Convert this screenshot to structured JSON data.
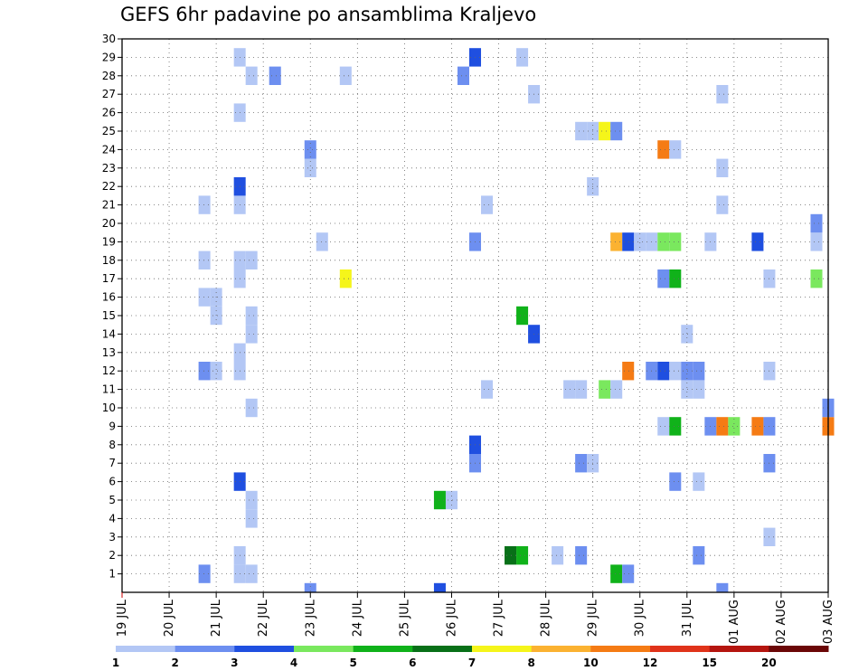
{
  "chart_data": {
    "type": "heatmap",
    "title": "GEFS 6hr padavine po ansamblima Kraljevo",
    "xlabel": "",
    "ylabel": "",
    "x_unit": "6-hour step",
    "x_range": [
      0,
      60
    ],
    "x_ticks": [
      "19 JUL",
      "20 JUL",
      "21 JUL",
      "22 JUL",
      "23 JUL",
      "24 JUL",
      "25 JUL",
      "26 JUL",
      "27 JUL",
      "28 JUL",
      "29 JUL",
      "30 JUL",
      "31 JUL",
      "01 AUG",
      "02 AUG",
      "03 AUG"
    ],
    "y_ticks": [
      1,
      2,
      3,
      4,
      5,
      6,
      7,
      8,
      9,
      10,
      11,
      12,
      13,
      14,
      15,
      16,
      17,
      18,
      19,
      20,
      21,
      22,
      23,
      24,
      25,
      26,
      27,
      28,
      29,
      30
    ],
    "y_range": [
      0,
      30
    ],
    "grid": true,
    "colorbar": {
      "labels": [
        "1",
        "2",
        "3",
        "4",
        "5",
        "6",
        "7",
        "8",
        "10",
        "12",
        "15",
        "20"
      ],
      "colors": [
        "#b3c7f5",
        "#6d8ff0",
        "#1f4fe0",
        "#7ae85e",
        "#10b21a",
        "#087018",
        "#f5f51a",
        "#fbb231",
        "#f57b14",
        "#e0331a",
        "#b5150f",
        "#6b0707"
      ]
    },
    "cells": [
      {
        "x": 7,
        "y": 1,
        "c": 2
      },
      {
        "x": 7,
        "y": 12,
        "c": 2
      },
      {
        "x": 7,
        "y": 16,
        "c": 1
      },
      {
        "x": 7,
        "y": 18,
        "c": 1
      },
      {
        "x": 7,
        "y": 21,
        "c": 1
      },
      {
        "x": 8,
        "y": 12,
        "c": 1
      },
      {
        "x": 8,
        "y": 15,
        "c": 1
      },
      {
        "x": 8,
        "y": 16,
        "c": 1
      },
      {
        "x": 10,
        "y": 1,
        "c": 1
      },
      {
        "x": 10,
        "y": 2,
        "c": 1
      },
      {
        "x": 10,
        "y": 6,
        "c": 3
      },
      {
        "x": 10,
        "y": 12,
        "c": 1
      },
      {
        "x": 10,
        "y": 13,
        "c": 1
      },
      {
        "x": 10,
        "y": 17,
        "c": 1
      },
      {
        "x": 10,
        "y": 18,
        "c": 1
      },
      {
        "x": 10,
        "y": 21,
        "c": 1
      },
      {
        "x": 10,
        "y": 22,
        "c": 3
      },
      {
        "x": 10,
        "y": 26,
        "c": 1
      },
      {
        "x": 10,
        "y": 29,
        "c": 1
      },
      {
        "x": 11,
        "y": 1,
        "c": 1
      },
      {
        "x": 11,
        "y": 4,
        "c": 1
      },
      {
        "x": 11,
        "y": 5,
        "c": 1
      },
      {
        "x": 11,
        "y": 10,
        "c": 1
      },
      {
        "x": 11,
        "y": 14,
        "c": 1
      },
      {
        "x": 11,
        "y": 15,
        "c": 1
      },
      {
        "x": 11,
        "y": 18,
        "c": 1
      },
      {
        "x": 11,
        "y": 28,
        "c": 1
      },
      {
        "x": 13,
        "y": 28,
        "c": 2
      },
      {
        "x": 16,
        "y": 0,
        "c": 2
      },
      {
        "x": 16,
        "y": 23,
        "c": 1
      },
      {
        "x": 16,
        "y": 24,
        "c": 2
      },
      {
        "x": 17,
        "y": 19,
        "c": 1
      },
      {
        "x": 19,
        "y": 17,
        "c": 7
      },
      {
        "x": 19,
        "y": 28,
        "c": 1
      },
      {
        "x": 27,
        "y": 0,
        "c": 3
      },
      {
        "x": 27,
        "y": 5,
        "c": 5
      },
      {
        "x": 28,
        "y": 5,
        "c": 1
      },
      {
        "x": 29,
        "y": 28,
        "c": 2
      },
      {
        "x": 30,
        "y": 7,
        "c": 2
      },
      {
        "x": 30,
        "y": 8,
        "c": 3
      },
      {
        "x": 30,
        "y": 19,
        "c": 2
      },
      {
        "x": 30,
        "y": 29,
        "c": 3
      },
      {
        "x": 31,
        "y": 11,
        "c": 1
      },
      {
        "x": 31,
        "y": 21,
        "c": 1
      },
      {
        "x": 33,
        "y": 2,
        "c": 6
      },
      {
        "x": 34,
        "y": 2,
        "c": 5
      },
      {
        "x": 34,
        "y": 15,
        "c": 5
      },
      {
        "x": 34,
        "y": 29,
        "c": 1
      },
      {
        "x": 35,
        "y": 14,
        "c": 3
      },
      {
        "x": 35,
        "y": 27,
        "c": 1
      },
      {
        "x": 37,
        "y": 2,
        "c": 1
      },
      {
        "x": 38,
        "y": 11,
        "c": 1
      },
      {
        "x": 39,
        "y": 2,
        "c": 2
      },
      {
        "x": 39,
        "y": 7,
        "c": 2
      },
      {
        "x": 39,
        "y": 11,
        "c": 1
      },
      {
        "x": 39,
        "y": 25,
        "c": 1
      },
      {
        "x": 40,
        "y": 7,
        "c": 1
      },
      {
        "x": 40,
        "y": 22,
        "c": 1
      },
      {
        "x": 40,
        "y": 25,
        "c": 1
      },
      {
        "x": 41,
        "y": 11,
        "c": 4
      },
      {
        "x": 41,
        "y": 25,
        "c": 7
      },
      {
        "x": 42,
        "y": 1,
        "c": 5
      },
      {
        "x": 42,
        "y": 11,
        "c": 1
      },
      {
        "x": 42,
        "y": 19,
        "c": 8
      },
      {
        "x": 42,
        "y": 25,
        "c": 2
      },
      {
        "x": 43,
        "y": 1,
        "c": 2
      },
      {
        "x": 43,
        "y": 12,
        "c": 9
      },
      {
        "x": 43,
        "y": 19,
        "c": 3
      },
      {
        "x": 44,
        "y": 19,
        "c": 1
      },
      {
        "x": 45,
        "y": 12,
        "c": 2
      },
      {
        "x": 45,
        "y": 19,
        "c": 1
      },
      {
        "x": 46,
        "y": 9,
        "c": 1
      },
      {
        "x": 46,
        "y": 12,
        "c": 3
      },
      {
        "x": 46,
        "y": 17,
        "c": 2
      },
      {
        "x": 46,
        "y": 19,
        "c": 4
      },
      {
        "x": 46,
        "y": 24,
        "c": 9
      },
      {
        "x": 47,
        "y": 6,
        "c": 2
      },
      {
        "x": 47,
        "y": 9,
        "c": 5
      },
      {
        "x": 47,
        "y": 12,
        "c": 1
      },
      {
        "x": 47,
        "y": 17,
        "c": 5
      },
      {
        "x": 47,
        "y": 19,
        "c": 4
      },
      {
        "x": 47,
        "y": 24,
        "c": 1
      },
      {
        "x": 48,
        "y": 11,
        "c": 1
      },
      {
        "x": 48,
        "y": 12,
        "c": 2
      },
      {
        "x": 48,
        "y": 14,
        "c": 1
      },
      {
        "x": 49,
        "y": 2,
        "c": 2
      },
      {
        "x": 49,
        "y": 6,
        "c": 1
      },
      {
        "x": 49,
        "y": 11,
        "c": 1
      },
      {
        "x": 49,
        "y": 12,
        "c": 2
      },
      {
        "x": 50,
        "y": 9,
        "c": 2
      },
      {
        "x": 50,
        "y": 19,
        "c": 1
      },
      {
        "x": 51,
        "y": 0,
        "c": 2
      },
      {
        "x": 51,
        "y": 9,
        "c": 9
      },
      {
        "x": 51,
        "y": 21,
        "c": 1
      },
      {
        "x": 51,
        "y": 23,
        "c": 1
      },
      {
        "x": 51,
        "y": 27,
        "c": 1
      },
      {
        "x": 52,
        "y": 9,
        "c": 4
      },
      {
        "x": 54,
        "y": 9,
        "c": 9
      },
      {
        "x": 54,
        "y": 19,
        "c": 3
      },
      {
        "x": 55,
        "y": 3,
        "c": 1
      },
      {
        "x": 55,
        "y": 7,
        "c": 2
      },
      {
        "x": 55,
        "y": 9,
        "c": 2
      },
      {
        "x": 55,
        "y": 12,
        "c": 1
      },
      {
        "x": 55,
        "y": 17,
        "c": 1
      },
      {
        "x": 59,
        "y": 17,
        "c": 4
      },
      {
        "x": 59,
        "y": 19,
        "c": 1
      },
      {
        "x": 59,
        "y": 20,
        "c": 2
      },
      {
        "x": 60,
        "y": 9,
        "c": 9
      },
      {
        "x": 60,
        "y": 10,
        "c": 2
      }
    ]
  }
}
